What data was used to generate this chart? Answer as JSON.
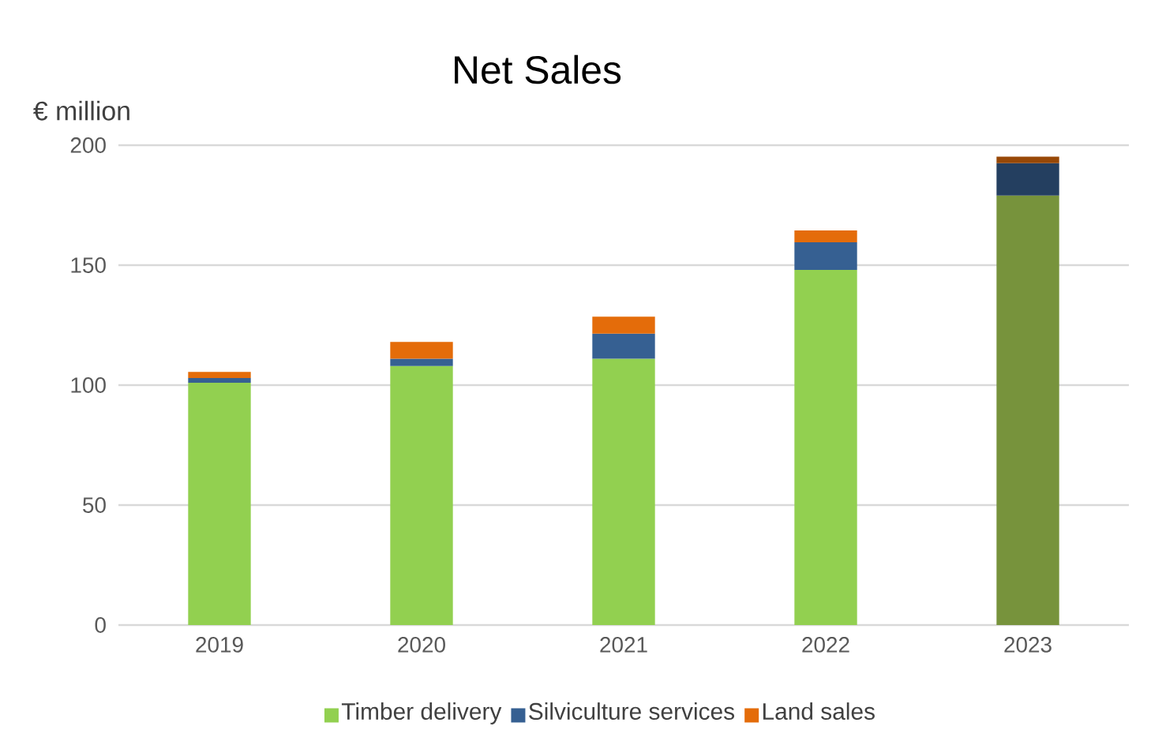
{
  "chart_data": {
    "type": "bar",
    "stacked": true,
    "title": "Net Sales",
    "ylabel": "€ million",
    "categories": [
      "2019",
      "2020",
      "2021",
      "2022",
      "2023"
    ],
    "series": [
      {
        "name": "Timber delivery",
        "color": "#92d050",
        "colors": [
          "#92d050",
          "#92d050",
          "#92d050",
          "#92d050",
          "#77933c"
        ],
        "values": [
          101,
          108,
          111,
          148,
          179
        ]
      },
      {
        "name": "Silviculture services",
        "color": "#366092",
        "colors": [
          "#366092",
          "#366092",
          "#366092",
          "#366092",
          "#243f60"
        ],
        "values": [
          2,
          3,
          10.5,
          11.5,
          13.5
        ]
      },
      {
        "name": "Land sales",
        "color": "#e46c0a",
        "colors": [
          "#e46c0a",
          "#e46c0a",
          "#e46c0a",
          "#e46c0a",
          "#984807"
        ],
        "values": [
          2.5,
          7,
          7,
          5,
          2.7
        ]
      }
    ],
    "ylim": [
      0,
      200
    ],
    "yticks": [
      0,
      50,
      100,
      150,
      200
    ],
    "grid": "y",
    "legend": "bottom"
  }
}
